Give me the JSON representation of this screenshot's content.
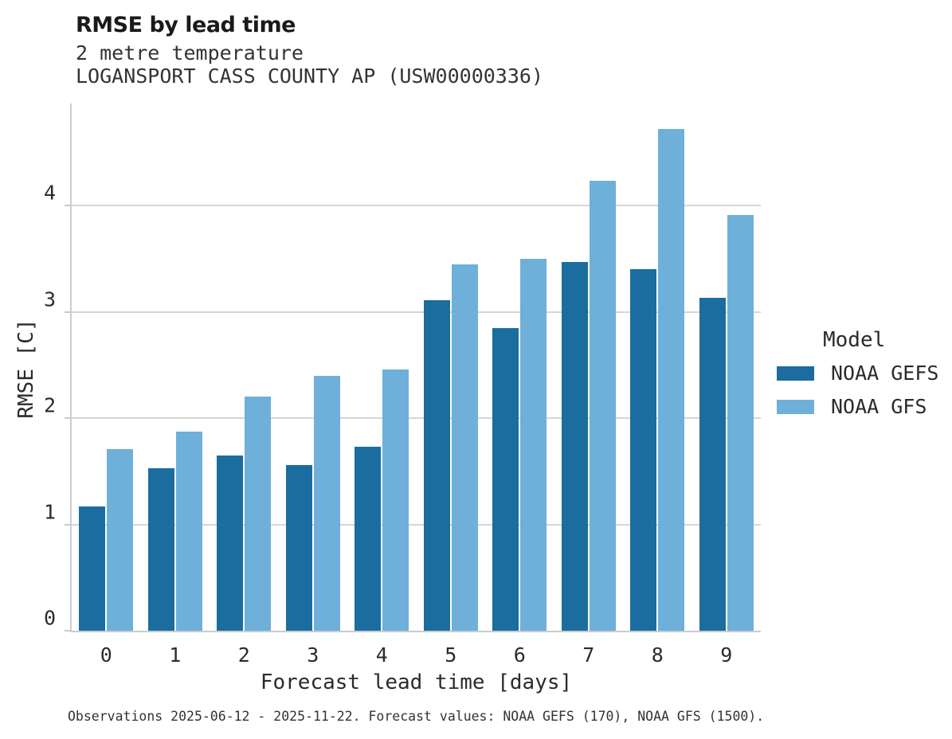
{
  "chart_data": {
    "type": "bar",
    "title": "RMSE by lead time",
    "subtitle": "2 metre temperature",
    "station": "LOGANSPORT CASS COUNTY AP (USW00000336)",
    "xlabel": "Forecast lead time [days]",
    "ylabel": "RMSE [C]",
    "categories": [
      "0",
      "1",
      "2",
      "3",
      "4",
      "5",
      "6",
      "7",
      "8",
      "9"
    ],
    "series": [
      {
        "name": "NOAA GEFS",
        "color": "#1a6d9e",
        "values": [
          1.17,
          1.53,
          1.65,
          1.56,
          1.73,
          3.11,
          2.85,
          3.47,
          3.4,
          3.13
        ]
      },
      {
        "name": "NOAA GFS",
        "color": "#6eb0d9",
        "values": [
          1.71,
          1.87,
          2.2,
          2.4,
          2.46,
          3.45,
          3.5,
          4.23,
          4.72,
          3.91
        ]
      }
    ],
    "yticks": [
      0,
      1,
      2,
      3,
      4
    ],
    "ylim": [
      0,
      4.96
    ],
    "grid": "horizontal",
    "legend": {
      "title": "Model",
      "position": "right"
    },
    "caption": "Observations 2025-06-12 - 2025-11-22. Forecast values: NOAA GEFS (170), NOAA GFS (1500)."
  }
}
